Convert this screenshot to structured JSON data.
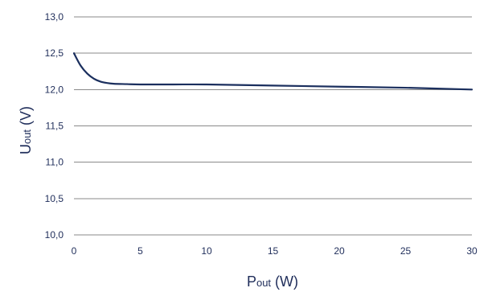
{
  "chart_data": {
    "type": "line",
    "title": "",
    "xlabel": {
      "main": "P",
      "sub": "out",
      "unit": " (W)"
    },
    "ylabel": {
      "main": "U",
      "sub": "out",
      "unit": " (V)"
    },
    "xlim": [
      0,
      30
    ],
    "ylim": [
      10.0,
      13.0
    ],
    "x_ticks": [
      "0",
      "5",
      "10",
      "15",
      "20",
      "25",
      "30"
    ],
    "y_ticks": [
      "10,0",
      "10,5",
      "11,0",
      "11,5",
      "12,0",
      "12,5",
      "13,0"
    ],
    "grid": "horizontal",
    "series": [
      {
        "color": "#1b2f5e",
        "x": [
          0,
          0.5,
          1,
          1.5,
          2,
          2.5,
          3,
          4,
          5,
          7.5,
          10,
          15,
          20,
          25,
          30
        ],
        "y": [
          12.5,
          12.33,
          12.22,
          12.15,
          12.11,
          12.09,
          12.08,
          12.075,
          12.07,
          12.07,
          12.07,
          12.055,
          12.04,
          12.025,
          12.0
        ]
      }
    ]
  }
}
